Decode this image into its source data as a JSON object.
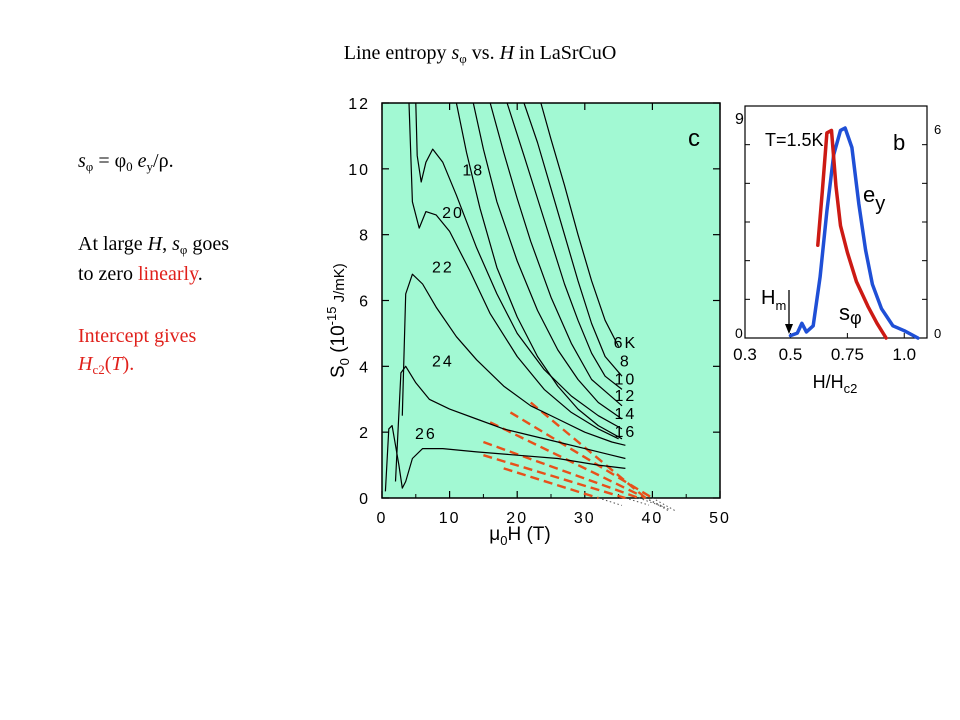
{
  "slide": {
    "title_pre": "Line entropy ",
    "title_s": "s",
    "title_phi": "φ",
    "title_mid": " vs. ",
    "title_H": "H",
    "title_post": " in LaSrCuO",
    "formula": {
      "s": "s",
      "phi": "φ",
      "eq": " = ",
      "phi0": "φ",
      "zero": "0",
      "e": "e",
      "y": "y",
      "slash": "/",
      "rho": "ρ."
    },
    "line1_pre": "At large ",
    "line1_H": "H",
    "line1_comma": ", ",
    "line1_s": "s",
    "line1_phi": "φ",
    "line1_post": " goes",
    "line2_pre": "to zero ",
    "line2_red": "linearly",
    "line2_post": ".",
    "line3": "Intercept gives",
    "line4_H": "H",
    "line4_sub": "c2",
    "line4_open": "(",
    "line4_T": "T",
    "line4_close": ")."
  },
  "colors": {
    "plot_bg": "#a2f9d3",
    "dashed": "#e8501a",
    "inset_red": "#cc1a14",
    "inset_blue": "#1f4fd6"
  },
  "chart_data": [
    {
      "type": "line",
      "panel_label": "c",
      "xlabel_mu": "μ",
      "xlabel_sub": "0",
      "xlabel_rest": "H  (T)",
      "ylabel_main": "S",
      "ylabel_sub": "0",
      "ylabel_paren": "  (10",
      "ylabel_exp": "-15",
      "ylabel_unit": " J/mK)",
      "xlim": [
        0,
        50
      ],
      "ylim": [
        0,
        12
      ],
      "x_ticks": [
        "0",
        "10",
        "20",
        "30",
        "40",
        "50"
      ],
      "y_ticks": [
        "0",
        "2",
        "4",
        "6",
        "8",
        "10",
        "12"
      ],
      "grid": false,
      "curve_labels": [
        "18",
        "20",
        "22",
        "24",
        "26",
        "6K",
        "8",
        "10",
        "12",
        "14",
        "16"
      ],
      "series": [
        {
          "name": "6K",
          "x": [
            23.5,
            25,
            27,
            29,
            31,
            33,
            35
          ],
          "y": [
            12,
            10.9,
            9.5,
            8.0,
            6.6,
            5.4,
            4.6
          ]
        },
        {
          "name": "8",
          "x": [
            21,
            23,
            25,
            27,
            29,
            31,
            33,
            35.5
          ],
          "y": [
            12,
            10.8,
            9.4,
            8.0,
            6.6,
            5.3,
            4.3,
            3.7
          ]
        },
        {
          "name": "10",
          "x": [
            18.5,
            21,
            23,
            25,
            27,
            29,
            31,
            33,
            35.5
          ],
          "y": [
            12,
            10.4,
            9.1,
            7.8,
            6.5,
            5.4,
            4.4,
            3.7,
            3.3
          ]
        },
        {
          "name": "12",
          "x": [
            16,
            18,
            20,
            22,
            25,
            28,
            31,
            35.5
          ],
          "y": [
            12,
            10.5,
            9.1,
            7.8,
            6.1,
            4.7,
            3.6,
            2.8
          ]
        },
        {
          "name": "14",
          "x": [
            13.5,
            15,
            17,
            20,
            23,
            26,
            29,
            32,
            35.5
          ],
          "y": [
            12,
            10.6,
            9.0,
            7.2,
            5.7,
            4.5,
            3.6,
            2.9,
            2.4
          ]
        },
        {
          "name": "16",
          "x": [
            11,
            12.5,
            14.5,
            17,
            20,
            23,
            26,
            29,
            32,
            35.5
          ],
          "y": [
            12,
            10.5,
            8.8,
            7.0,
            5.5,
            4.3,
            3.4,
            2.7,
            2.2,
            1.8
          ]
        },
        {
          "name": "18",
          "x": [
            5,
            5.2,
            5.8,
            6.5,
            7.5,
            9,
            11,
            14,
            17,
            20,
            24,
            28,
            32,
            35.5
          ],
          "y": [
            12,
            10.4,
            9.6,
            10.2,
            10.6,
            10.2,
            9.2,
            7.6,
            6.2,
            5.0,
            3.9,
            3.1,
            2.5,
            2.1
          ]
        },
        {
          "name": "20",
          "x": [
            4,
            4.5,
            5.5,
            6.5,
            8,
            10,
            13,
            16,
            20,
            24,
            28,
            32,
            35
          ],
          "y": [
            12,
            9.0,
            8.2,
            8.7,
            8.6,
            8.1,
            6.9,
            5.6,
            4.3,
            3.3,
            2.6,
            2.1,
            1.8
          ]
        },
        {
          "name": "22",
          "x": [
            3,
            3.5,
            4.5,
            6,
            8,
            11,
            14,
            18,
            22,
            26,
            30,
            34,
            36
          ],
          "y": [
            2.5,
            6.2,
            6.8,
            6.5,
            5.8,
            4.9,
            4.2,
            3.4,
            2.8,
            2.4,
            2.0,
            1.7,
            1.6
          ]
        },
        {
          "name": "24",
          "x": [
            2,
            2.8,
            3.5,
            5,
            7,
            10,
            14,
            18,
            22,
            26,
            30,
            34,
            36
          ],
          "y": [
            0.5,
            3.8,
            4.0,
            3.5,
            3.0,
            2.7,
            2.4,
            2.1,
            1.9,
            1.7,
            1.5,
            1.3,
            1.2
          ]
        },
        {
          "name": "26",
          "x": [
            0.5,
            1,
            1.5,
            2,
            2.5,
            3,
            3.5,
            4.5,
            6,
            9,
            14,
            20,
            26,
            32,
            36
          ],
          "y": [
            0.2,
            2.1,
            2.2,
            1.6,
            1.0,
            0.3,
            0.5,
            1.2,
            1.5,
            1.5,
            1.4,
            1.3,
            1.2,
            1.0,
            0.9
          ]
        }
      ],
      "linear_fits": [
        {
          "x": [
            22,
            39
          ],
          "y": [
            2.9,
            0
          ]
        },
        {
          "x": [
            19,
            40
          ],
          "y": [
            2.6,
            0
          ]
        },
        {
          "x": [
            16,
            39
          ],
          "y": [
            2.3,
            0
          ]
        },
        {
          "x": [
            15,
            38
          ],
          "y": [
            1.7,
            0
          ]
        },
        {
          "x": [
            15,
            36
          ],
          "y": [
            1.3,
            0
          ]
        },
        {
          "x": [
            18,
            32
          ],
          "y": [
            0.9,
            0
          ]
        }
      ]
    },
    {
      "type": "line",
      "panel_label": "b",
      "annotation_T": "T=1.5K",
      "xlabel_main": "H/H",
      "xlabel_sub": "c2",
      "xlim": [
        0.3,
        1.1
      ],
      "y_left_ticks": [
        "0",
        "9"
      ],
      "y_right_ticks": [
        "0",
        "6"
      ],
      "x_ticks": [
        "0.3",
        "0.5",
        "0.75",
        "1.0"
      ],
      "marker": {
        "main": "H",
        "sub": "m"
      },
      "series": [
        {
          "name_main": "e",
          "name_sub": "y",
          "x": [
            0.5,
            0.53,
            0.55,
            0.57,
            0.6,
            0.63,
            0.66,
            0.69,
            0.72,
            0.74,
            0.77,
            0.8,
            0.83,
            0.86,
            0.9,
            0.95,
            1.0,
            1.06
          ],
          "y": [
            0.1,
            0.2,
            0.6,
            0.25,
            0.5,
            2.5,
            5.2,
            7.5,
            8.5,
            8.6,
            7.8,
            5.5,
            3.6,
            2.2,
            1.2,
            0.5,
            0.3,
            0
          ]
        },
        {
          "name_main": "s",
          "name_sub": "φ",
          "x": [
            0.62,
            0.64,
            0.66,
            0.68,
            0.7,
            0.72,
            0.75,
            0.79,
            0.84,
            0.88,
            0.92
          ],
          "y": [
            3.8,
            6.0,
            8.4,
            8.5,
            6.2,
            4.6,
            3.5,
            2.3,
            1.3,
            0.6,
            0
          ]
        }
      ]
    }
  ]
}
